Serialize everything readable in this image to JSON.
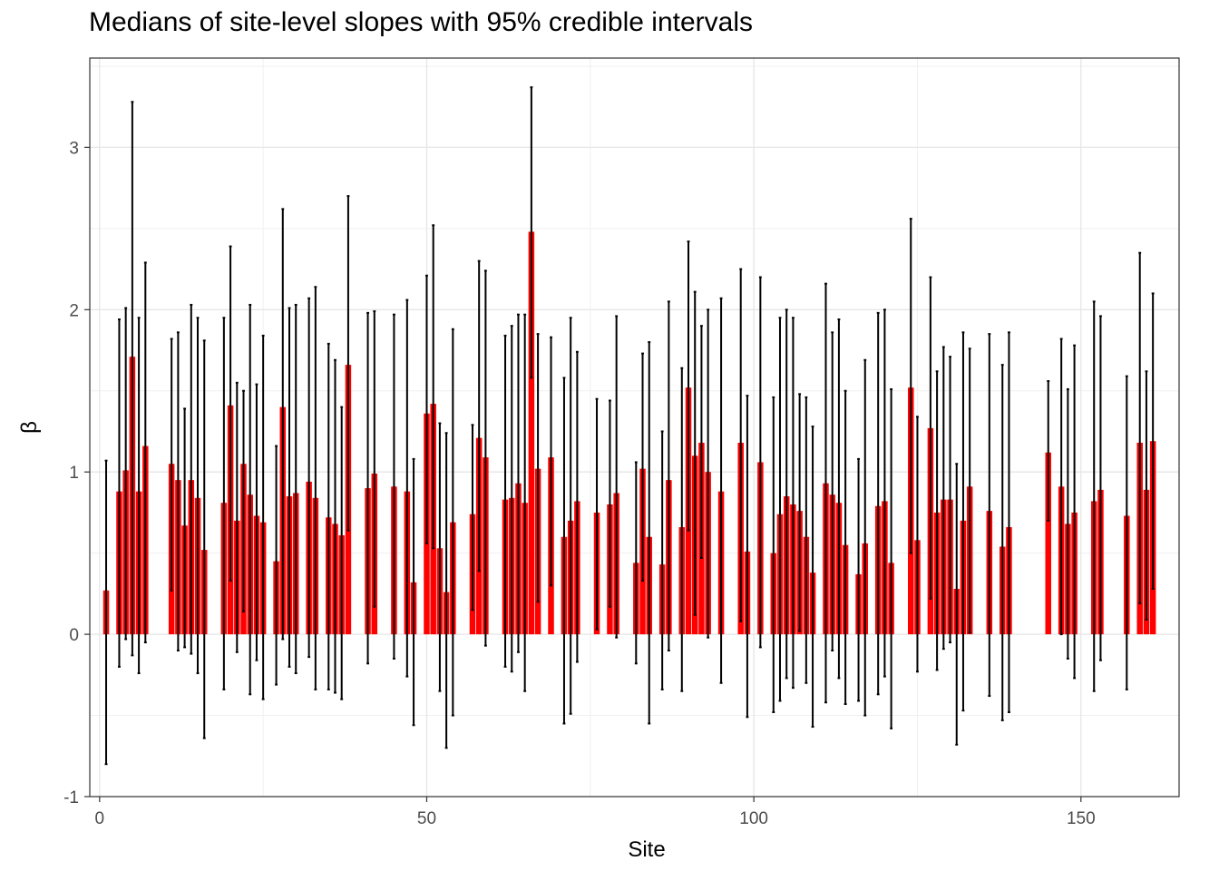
{
  "chart_data": {
    "type": "bar",
    "title": "Medians of site-level slopes with 95% credible intervals",
    "xlabel": "Site",
    "ylabel": "β",
    "xlim": [
      -1.5,
      165
    ],
    "ylim": [
      -1,
      3.55
    ],
    "x_ticks": [
      0,
      50,
      100,
      150
    ],
    "y_ticks": [
      -1,
      0,
      1,
      2,
      3
    ],
    "grid": true,
    "bar_color": "#FF0000",
    "errorbar_color": "#000000",
    "series": [
      {
        "values": [
          {
            "x": 1,
            "median": 0.27,
            "lower": -0.8,
            "upper": 1.07
          },
          {
            "x": 3,
            "median": 0.88,
            "lower": -0.2,
            "upper": 1.94
          },
          {
            "x": 4,
            "median": 1.01,
            "lower": -0.03,
            "upper": 2.01
          },
          {
            "x": 5,
            "median": 1.71,
            "lower": -0.13,
            "upper": 3.28
          },
          {
            "x": 6,
            "median": 0.88,
            "lower": -0.24,
            "upper": 1.95
          },
          {
            "x": 7,
            "median": 1.16,
            "lower": -0.05,
            "upper": 2.29
          },
          {
            "x": 11,
            "median": 1.05,
            "lower": 0.27,
            "upper": 1.82
          },
          {
            "x": 12,
            "median": 0.95,
            "lower": -0.1,
            "upper": 1.86
          },
          {
            "x": 13,
            "median": 0.67,
            "lower": -0.08,
            "upper": 1.39
          },
          {
            "x": 14,
            "median": 0.95,
            "lower": -0.12,
            "upper": 2.03
          },
          {
            "x": 15,
            "median": 0.84,
            "lower": -0.24,
            "upper": 1.95
          },
          {
            "x": 16,
            "median": 0.52,
            "lower": -0.64,
            "upper": 1.81
          },
          {
            "x": 19,
            "median": 0.81,
            "lower": -0.34,
            "upper": 1.95
          },
          {
            "x": 20,
            "median": 1.41,
            "lower": 0.33,
            "upper": 2.39
          },
          {
            "x": 21,
            "median": 0.7,
            "lower": -0.11,
            "upper": 1.55
          },
          {
            "x": 22,
            "median": 1.05,
            "lower": 0.14,
            "upper": 1.5
          },
          {
            "x": 23,
            "median": 0.86,
            "lower": -0.37,
            "upper": 2.03
          },
          {
            "x": 24,
            "median": 0.73,
            "lower": -0.16,
            "upper": 1.54
          },
          {
            "x": 25,
            "median": 0.69,
            "lower": -0.4,
            "upper": 1.84
          },
          {
            "x": 27,
            "median": 0.45,
            "lower": -0.31,
            "upper": 1.16
          },
          {
            "x": 28,
            "median": 1.4,
            "lower": -0.03,
            "upper": 2.62
          },
          {
            "x": 29,
            "median": 0.85,
            "lower": -0.2,
            "upper": 2.01
          },
          {
            "x": 30,
            "median": 0.87,
            "lower": -0.24,
            "upper": 2.03
          },
          {
            "x": 32,
            "median": 0.94,
            "lower": -0.14,
            "upper": 2.07
          },
          {
            "x": 33,
            "median": 0.84,
            "lower": -0.34,
            "upper": 2.14
          },
          {
            "x": 35,
            "median": 0.72,
            "lower": -0.34,
            "upper": 1.79
          },
          {
            "x": 36,
            "median": 0.68,
            "lower": -0.36,
            "upper": 1.69
          },
          {
            "x": 37,
            "median": 0.61,
            "lower": -0.4,
            "upper": 1.4
          },
          {
            "x": 38,
            "median": 1.66,
            "lower": 0.64,
            "upper": 2.7
          },
          {
            "x": 41,
            "median": 0.9,
            "lower": -0.18,
            "upper": 1.98
          },
          {
            "x": 42,
            "median": 0.99,
            "lower": 0.17,
            "upper": 1.99
          },
          {
            "x": 45,
            "median": 0.91,
            "lower": -0.15,
            "upper": 1.97
          },
          {
            "x": 47,
            "median": 0.88,
            "lower": -0.26,
            "upper": 2.06
          },
          {
            "x": 48,
            "median": 0.32,
            "lower": -0.56,
            "upper": 1.08
          },
          {
            "x": 50,
            "median": 1.36,
            "lower": 0.56,
            "upper": 2.21
          },
          {
            "x": 51,
            "median": 1.42,
            "lower": 0.53,
            "upper": 2.52
          },
          {
            "x": 52,
            "median": 0.53,
            "lower": -0.35,
            "upper": 1.3
          },
          {
            "x": 53,
            "median": 0.26,
            "lower": -0.7,
            "upper": 1.24
          },
          {
            "x": 54,
            "median": 0.69,
            "lower": -0.5,
            "upper": 1.88
          },
          {
            "x": 57,
            "median": 0.74,
            "lower": 0.15,
            "upper": 1.29
          },
          {
            "x": 58,
            "median": 1.21,
            "lower": 0.39,
            "upper": 2.3
          },
          {
            "x": 59,
            "median": 1.09,
            "lower": -0.07,
            "upper": 2.24
          },
          {
            "x": 62,
            "median": 0.83,
            "lower": -0.2,
            "upper": 1.84
          },
          {
            "x": 63,
            "median": 0.84,
            "lower": -0.23,
            "upper": 1.9
          },
          {
            "x": 64,
            "median": 0.93,
            "lower": -0.11,
            "upper": 1.97
          },
          {
            "x": 65,
            "median": 0.81,
            "lower": -0.35,
            "upper": 1.97
          },
          {
            "x": 66,
            "median": 2.48,
            "lower": 1.58,
            "upper": 3.37
          },
          {
            "x": 67,
            "median": 1.02,
            "lower": 0.2,
            "upper": 1.85
          },
          {
            "x": 69,
            "median": 1.09,
            "lower": 0.3,
            "upper": 1.83
          },
          {
            "x": 71,
            "median": 0.6,
            "lower": -0.55,
            "upper": 1.58
          },
          {
            "x": 72,
            "median": 0.7,
            "lower": -0.49,
            "upper": 1.95
          },
          {
            "x": 73,
            "median": 0.82,
            "lower": -0.17,
            "upper": 1.74
          },
          {
            "x": 76,
            "median": 0.75,
            "lower": 0.03,
            "upper": 1.45
          },
          {
            "x": 78,
            "median": 0.8,
            "lower": 0.17,
            "upper": 1.44
          },
          {
            "x": 79,
            "median": 0.87,
            "lower": -0.02,
            "upper": 1.96
          },
          {
            "x": 82,
            "median": 0.44,
            "lower": -0.18,
            "upper": 1.06
          },
          {
            "x": 83,
            "median": 1.02,
            "lower": 0.33,
            "upper": 1.73
          },
          {
            "x": 84,
            "median": 0.6,
            "lower": -0.55,
            "upper": 1.8
          },
          {
            "x": 86,
            "median": 0.43,
            "lower": -0.34,
            "upper": 1.25
          },
          {
            "x": 87,
            "median": 0.95,
            "lower": -0.1,
            "upper": 2.05
          },
          {
            "x": 89,
            "median": 0.66,
            "lower": -0.35,
            "upper": 1.64
          },
          {
            "x": 90,
            "median": 1.52,
            "lower": 0.64,
            "upper": 2.42
          },
          {
            "x": 91,
            "median": 1.1,
            "lower": 0.12,
            "upper": 2.11
          },
          {
            "x": 92,
            "median": 1.18,
            "lower": 0.47,
            "upper": 1.9
          },
          {
            "x": 93,
            "median": 1.0,
            "lower": -0.02,
            "upper": 2.0
          },
          {
            "x": 95,
            "median": 0.88,
            "lower": -0.3,
            "upper": 2.07
          },
          {
            "x": 98,
            "median": 1.18,
            "lower": 0.08,
            "upper": 2.25
          },
          {
            "x": 99,
            "median": 0.51,
            "lower": -0.51,
            "upper": 1.47
          },
          {
            "x": 101,
            "median": 1.06,
            "lower": -0.08,
            "upper": 2.2
          },
          {
            "x": 103,
            "median": 0.5,
            "lower": -0.48,
            "upper": 1.46
          },
          {
            "x": 104,
            "median": 0.74,
            "lower": -0.41,
            "upper": 1.95
          },
          {
            "x": 105,
            "median": 0.85,
            "lower": -0.27,
            "upper": 2.0
          },
          {
            "x": 106,
            "median": 0.8,
            "lower": -0.33,
            "upper": 1.95
          },
          {
            "x": 107,
            "median": 0.76,
            "lower": 0.02,
            "upper": 1.48
          },
          {
            "x": 108,
            "median": 0.6,
            "lower": -0.3,
            "upper": 1.46
          },
          {
            "x": 109,
            "median": 0.38,
            "lower": -0.57,
            "upper": 1.28
          },
          {
            "x": 111,
            "median": 0.93,
            "lower": -0.42,
            "upper": 2.16
          },
          {
            "x": 112,
            "median": 0.86,
            "lower": -0.1,
            "upper": 1.86
          },
          {
            "x": 113,
            "median": 0.81,
            "lower": -0.27,
            "upper": 1.94
          },
          {
            "x": 114,
            "median": 0.55,
            "lower": -0.43,
            "upper": 1.5
          },
          {
            "x": 116,
            "median": 0.37,
            "lower": -0.41,
            "upper": 1.08
          },
          {
            "x": 117,
            "median": 0.56,
            "lower": -0.5,
            "upper": 1.69
          },
          {
            "x": 119,
            "median": 0.79,
            "lower": -0.37,
            "upper": 1.98
          },
          {
            "x": 120,
            "median": 0.82,
            "lower": -0.26,
            "upper": 2.0
          },
          {
            "x": 121,
            "median": 0.44,
            "lower": -0.58,
            "upper": 1.51
          },
          {
            "x": 124,
            "median": 1.52,
            "lower": 0.5,
            "upper": 2.56
          },
          {
            "x": 125,
            "median": 0.58,
            "lower": -0.23,
            "upper": 1.34
          },
          {
            "x": 127,
            "median": 1.27,
            "lower": 0.22,
            "upper": 2.2
          },
          {
            "x": 128,
            "median": 0.75,
            "lower": -0.22,
            "upper": 1.62
          },
          {
            "x": 129,
            "median": 0.83,
            "lower": -0.09,
            "upper": 1.77
          },
          {
            "x": 130,
            "median": 0.83,
            "lower": -0.05,
            "upper": 1.71
          },
          {
            "x": 131,
            "median": 0.28,
            "lower": -0.68,
            "upper": 1.05
          },
          {
            "x": 132,
            "median": 0.7,
            "lower": -0.47,
            "upper": 1.86
          },
          {
            "x": 133,
            "median": 0.91,
            "lower": 0.01,
            "upper": 1.76
          },
          {
            "x": 136,
            "median": 0.76,
            "lower": -0.38,
            "upper": 1.85
          },
          {
            "x": 138,
            "median": 0.54,
            "lower": -0.53,
            "upper": 1.66
          },
          {
            "x": 139,
            "median": 0.66,
            "lower": -0.48,
            "upper": 1.86
          },
          {
            "x": 145,
            "median": 1.12,
            "lower": 0.7,
            "upper": 1.56
          },
          {
            "x": 147,
            "median": 0.91,
            "lower": 0.0,
            "upper": 1.82
          },
          {
            "x": 148,
            "median": 0.68,
            "lower": -0.15,
            "upper": 1.51
          },
          {
            "x": 149,
            "median": 0.75,
            "lower": -0.27,
            "upper": 1.78
          },
          {
            "x": 152,
            "median": 0.82,
            "lower": -0.35,
            "upper": 2.05
          },
          {
            "x": 153,
            "median": 0.89,
            "lower": -0.16,
            "upper": 1.96
          },
          {
            "x": 157,
            "median": 0.73,
            "lower": -0.34,
            "upper": 1.59
          },
          {
            "x": 159,
            "median": 1.18,
            "lower": 0.19,
            "upper": 2.35
          },
          {
            "x": 160,
            "median": 0.89,
            "lower": 0.09,
            "upper": 1.62
          },
          {
            "x": 161,
            "median": 1.19,
            "lower": 0.28,
            "upper": 2.1
          }
        ]
      }
    ]
  }
}
